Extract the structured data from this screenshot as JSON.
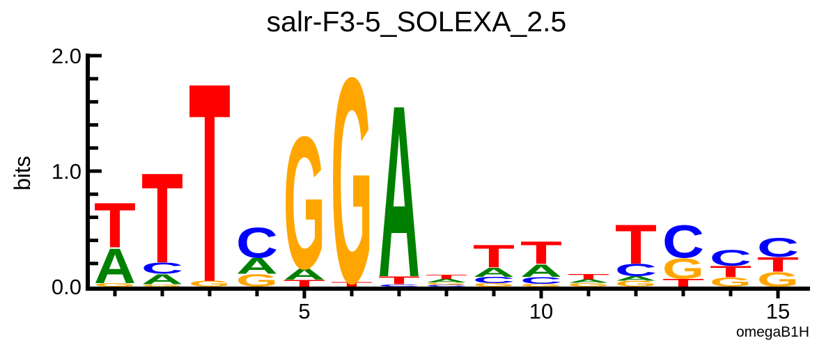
{
  "page": {
    "background": "#ffffff"
  },
  "chart_data": {
    "type": "sequence_logo",
    "title": "salr-F3-5_SOLEXA_2.5",
    "ylabel": "bits",
    "corner_label": "omegaB1H",
    "ylim": [
      0.0,
      2.0
    ],
    "ytick_labels": [
      "0.0",
      "1.0",
      "2.0"
    ],
    "ytick_values": [
      0.0,
      1.0,
      2.0
    ],
    "yminor_step": 0.2,
    "xtick_labels": [
      "5",
      "10",
      "15"
    ],
    "xtick_values": [
      5,
      10,
      15
    ],
    "num_positions": 15,
    "alphabet_colors": {
      "A": "#008000",
      "C": "#0000ff",
      "G": "#ffa500",
      "T": "#ff0000"
    },
    "axis_color": "#000000",
    "positions": [
      {
        "pos": 1,
        "total_bits": 0.74,
        "stack_bottom_to_top": [
          [
            "G",
            0.03
          ],
          [
            "A",
            0.31
          ],
          [
            "T",
            0.4
          ]
        ]
      },
      {
        "pos": 2,
        "total_bits": 1.01,
        "stack_bottom_to_top": [
          [
            "G",
            0.02
          ],
          [
            "A",
            0.09
          ],
          [
            "C",
            0.1
          ],
          [
            "T",
            0.8
          ]
        ]
      },
      {
        "pos": 3,
        "total_bits": 1.82,
        "stack_bottom_to_top": [
          [
            "G",
            0.05
          ],
          [
            "T",
            1.77
          ]
        ]
      },
      {
        "pos": 4,
        "total_bits": 0.52,
        "stack_bottom_to_top": [
          [
            "G",
            0.11
          ],
          [
            "A",
            0.14
          ],
          [
            "C",
            0.27
          ]
        ]
      },
      {
        "pos": 5,
        "total_bits": 1.34,
        "stack_bottom_to_top": [
          [
            "T",
            0.06
          ],
          [
            "A",
            0.1
          ],
          [
            "G",
            1.18
          ]
        ]
      },
      {
        "pos": 6,
        "total_bits": 1.87,
        "stack_bottom_to_top": [
          [
            "T",
            0.04
          ],
          [
            "G",
            1.83
          ]
        ]
      },
      {
        "pos": 7,
        "total_bits": 1.62,
        "stack_bottom_to_top": [
          [
            "C",
            0.02
          ],
          [
            "T",
            0.07
          ],
          [
            "A",
            1.53
          ]
        ]
      },
      {
        "pos": 8,
        "total_bits": 0.1,
        "stack_bottom_to_top": [
          [
            "C",
            0.015
          ],
          [
            "G",
            0.02
          ],
          [
            "A",
            0.03
          ],
          [
            "T",
            0.035
          ]
        ]
      },
      {
        "pos": 9,
        "total_bits": 0.36,
        "stack_bottom_to_top": [
          [
            "G",
            0.03
          ],
          [
            "C",
            0.055
          ],
          [
            "A",
            0.08
          ],
          [
            "T",
            0.2
          ]
        ]
      },
      {
        "pos": 10,
        "total_bits": 0.4,
        "stack_bottom_to_top": [
          [
            "G",
            0.025
          ],
          [
            "C",
            0.06
          ],
          [
            "A",
            0.11
          ],
          [
            "T",
            0.2
          ]
        ]
      },
      {
        "pos": 11,
        "total_bits": 0.11,
        "stack_bottom_to_top": [
          [
            "G",
            0.033
          ],
          [
            "A",
            0.03
          ],
          [
            "T",
            0.048
          ]
        ]
      },
      {
        "pos": 12,
        "total_bits": 0.55,
        "stack_bottom_to_top": [
          [
            "G",
            0.05
          ],
          [
            "A",
            0.04
          ],
          [
            "C",
            0.11
          ],
          [
            "T",
            0.35
          ]
        ]
      },
      {
        "pos": 13,
        "total_bits": 0.54,
        "stack_bottom_to_top": [
          [
            "T",
            0.07
          ],
          [
            "G",
            0.18
          ],
          [
            "C",
            0.29
          ]
        ]
      },
      {
        "pos": 14,
        "total_bits": 0.32,
        "stack_bottom_to_top": [
          [
            "G",
            0.08
          ],
          [
            "T",
            0.1
          ],
          [
            "C",
            0.14
          ]
        ]
      },
      {
        "pos": 15,
        "total_bits": 0.43,
        "stack_bottom_to_top": [
          [
            "G",
            0.13
          ],
          [
            "T",
            0.13
          ],
          [
            "C",
            0.17
          ]
        ]
      }
    ]
  }
}
